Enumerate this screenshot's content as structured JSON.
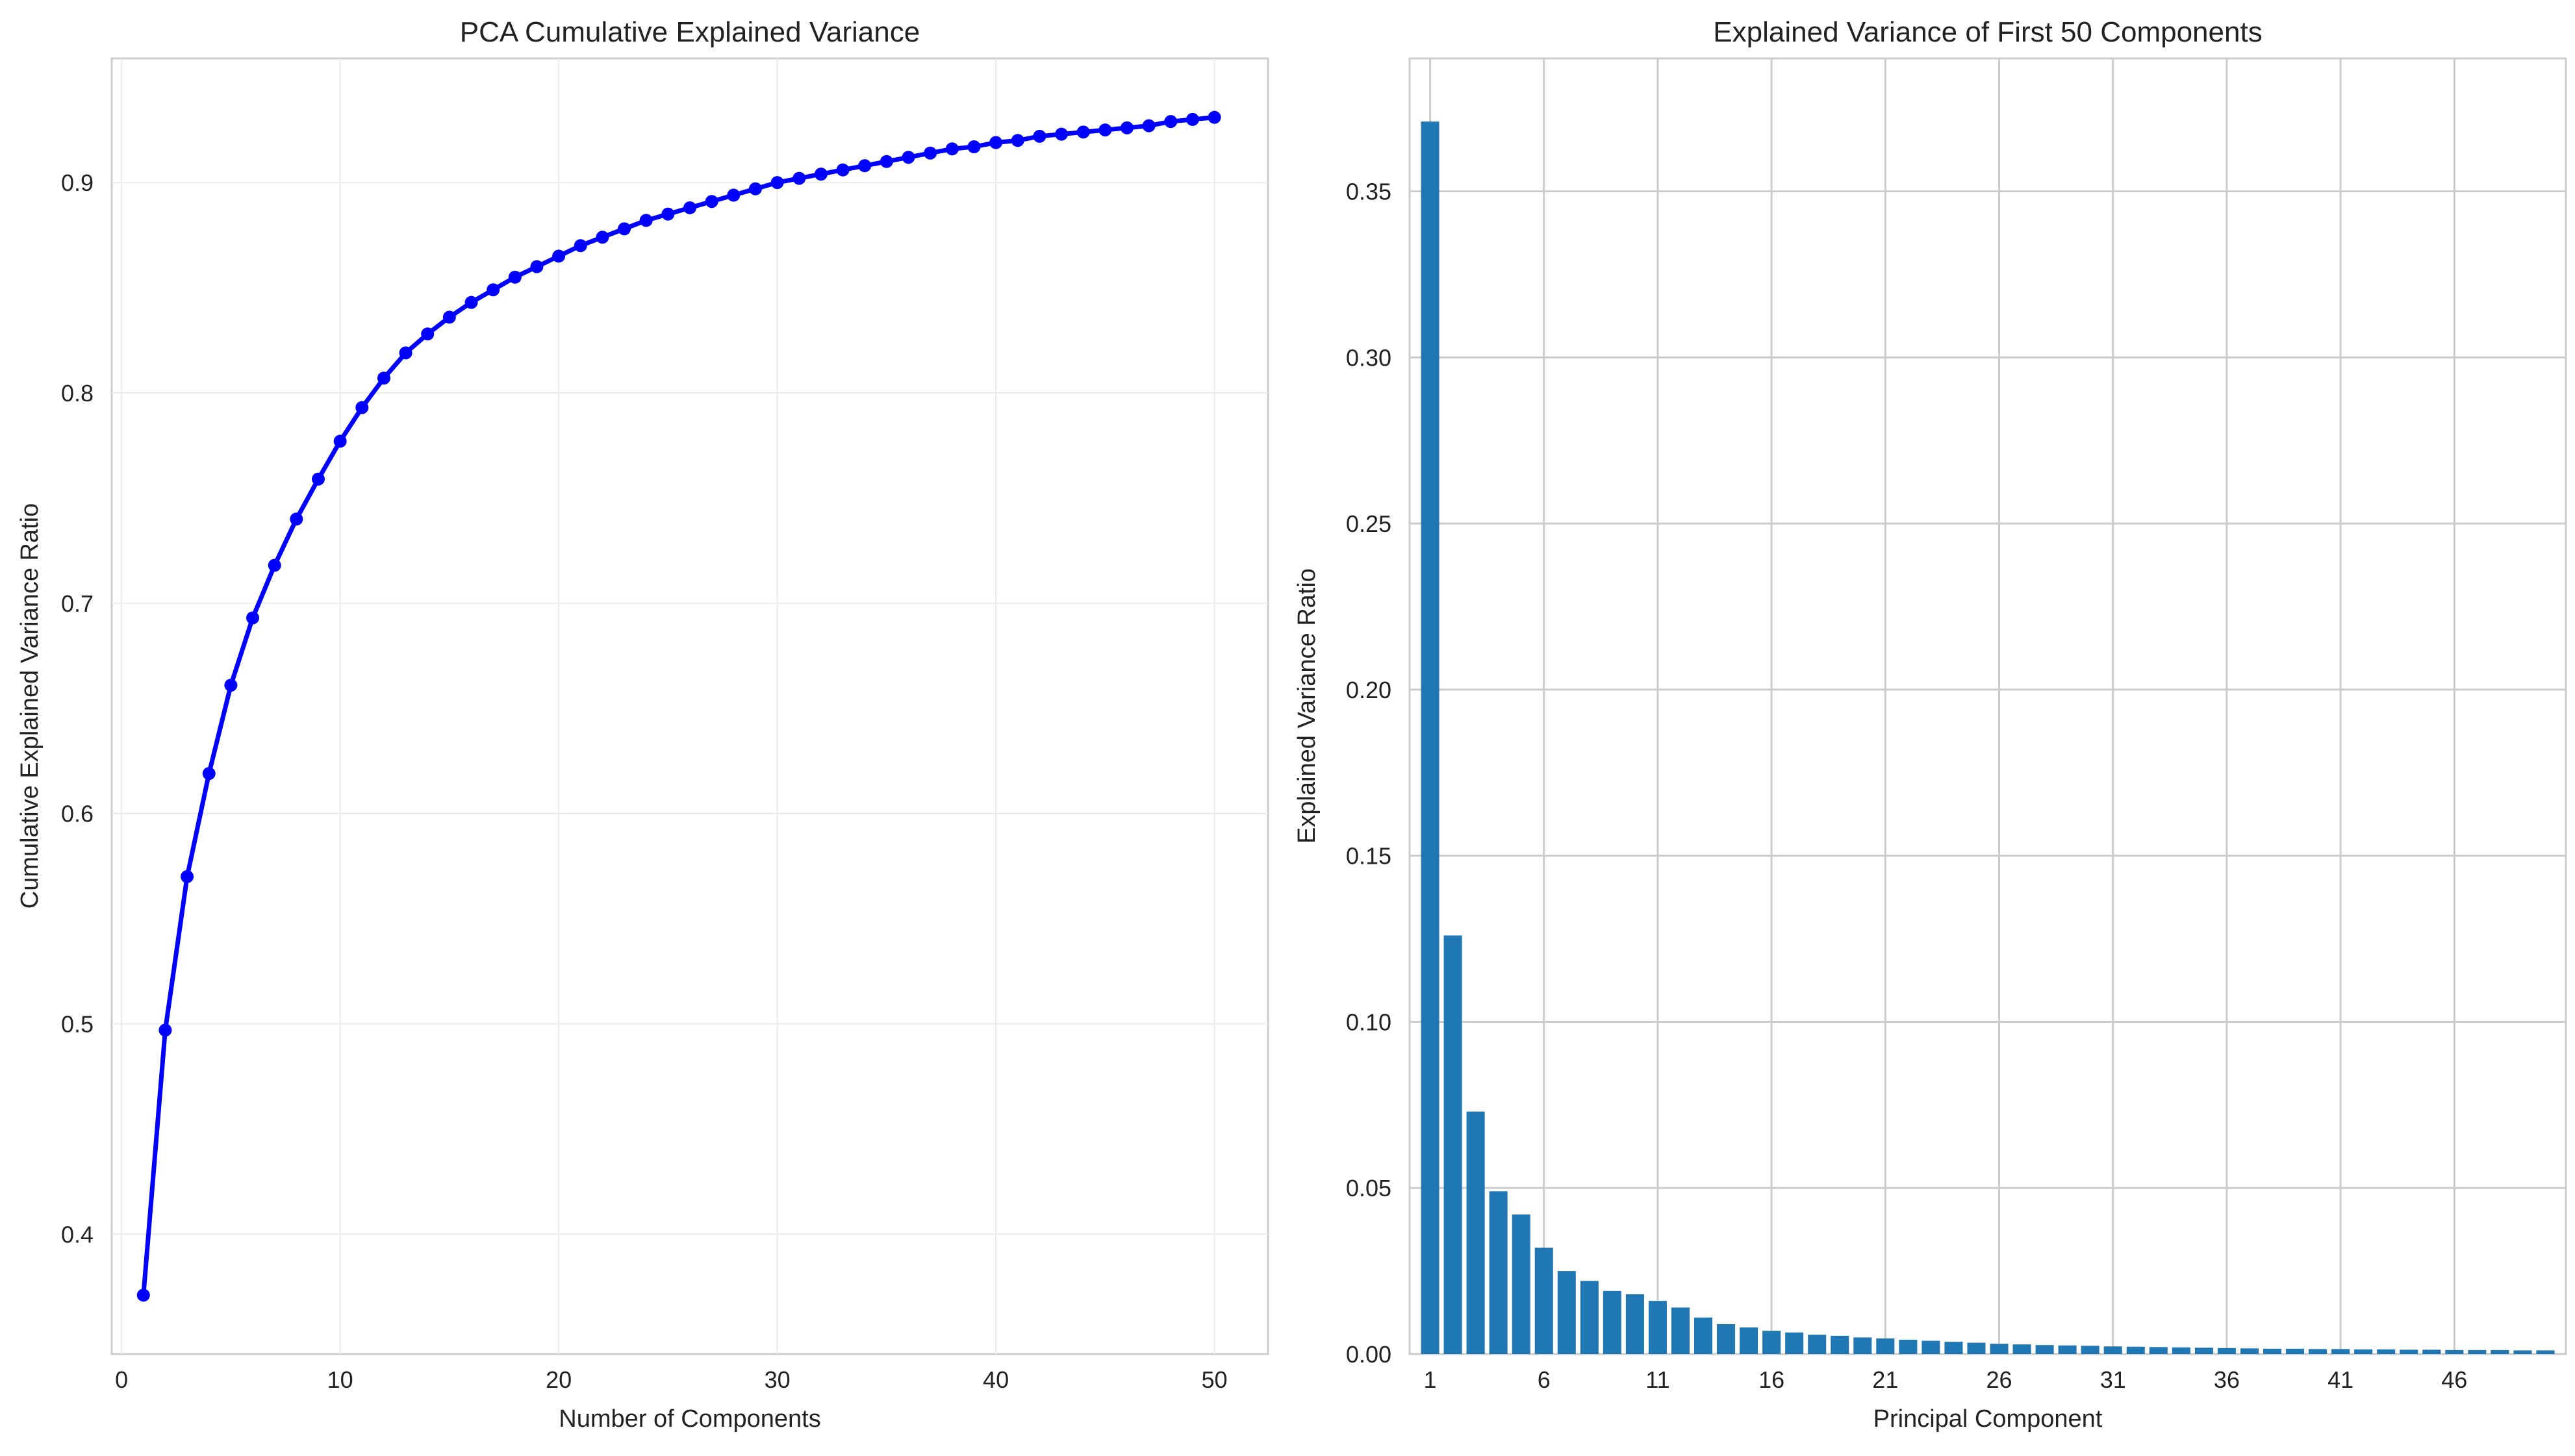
{
  "chart_data": [
    {
      "type": "line",
      "title": "PCA Cumulative Explained Variance",
      "xlabel": "Number of Components",
      "ylabel": "Cumulative Explained Variance Ratio",
      "xlim": [
        -0.45,
        52.45
      ],
      "ylim": [
        0.343,
        0.959
      ],
      "xticks": [
        0,
        10,
        20,
        30,
        40,
        50
      ],
      "yticks": [
        0.4,
        0.5,
        0.6,
        0.7,
        0.8,
        0.9
      ],
      "ytick_labels": [
        "0.4",
        "0.5",
        "0.6",
        "0.7",
        "0.8",
        "0.9"
      ],
      "grid": true,
      "marker": "circle",
      "color": "#0000ff",
      "x": [
        1,
        2,
        3,
        4,
        5,
        6,
        7,
        8,
        9,
        10,
        11,
        12,
        13,
        14,
        15,
        16,
        17,
        18,
        19,
        20,
        21,
        22,
        23,
        24,
        25,
        26,
        27,
        28,
        29,
        30,
        31,
        32,
        33,
        34,
        35,
        36,
        37,
        38,
        39,
        40,
        41,
        42,
        43,
        44,
        45,
        46,
        47,
        48,
        49,
        50
      ],
      "y": [
        0.371,
        0.497,
        0.57,
        0.619,
        0.661,
        0.693,
        0.718,
        0.74,
        0.759,
        0.777,
        0.793,
        0.807,
        0.819,
        0.828,
        0.836,
        0.843,
        0.849,
        0.855,
        0.86,
        0.865,
        0.87,
        0.874,
        0.878,
        0.882,
        0.885,
        0.888,
        0.891,
        0.894,
        0.897,
        0.9,
        0.902,
        0.904,
        0.906,
        0.908,
        0.91,
        0.912,
        0.914,
        0.916,
        0.917,
        0.919,
        0.92,
        0.922,
        0.923,
        0.924,
        0.925,
        0.926,
        0.927,
        0.929,
        0.93,
        0.931
      ]
    },
    {
      "type": "bar",
      "title": "Explained Variance of First 50 Components",
      "xlabel": "Principal Component",
      "ylabel": "Explained Variance Ratio",
      "xlim": [
        -0.4,
        50.4
      ],
      "ylim": [
        0,
        0.39
      ],
      "xticks": [
        1,
        6,
        11,
        16,
        21,
        26,
        31,
        36,
        41,
        46
      ],
      "yticks": [
        0,
        0.05,
        0.1,
        0.15,
        0.2,
        0.25,
        0.3,
        0.35
      ],
      "ytick_labels": [
        "0.00",
        "0.05",
        "0.10",
        "0.15",
        "0.20",
        "0.25",
        "0.30",
        "0.35"
      ],
      "grid": true,
      "color": "#1f77b4",
      "categories": [
        1,
        2,
        3,
        4,
        5,
        6,
        7,
        8,
        9,
        10,
        11,
        12,
        13,
        14,
        15,
        16,
        17,
        18,
        19,
        20,
        21,
        22,
        23,
        24,
        25,
        26,
        27,
        28,
        29,
        30,
        31,
        32,
        33,
        34,
        35,
        36,
        37,
        38,
        39,
        40,
        41,
        42,
        43,
        44,
        45,
        46,
        47,
        48,
        49,
        50
      ],
      "values": [
        0.371,
        0.126,
        0.073,
        0.049,
        0.042,
        0.032,
        0.025,
        0.022,
        0.019,
        0.018,
        0.016,
        0.014,
        0.011,
        0.009,
        0.008,
        0.007,
        0.0065,
        0.0058,
        0.0055,
        0.005,
        0.0047,
        0.0043,
        0.004,
        0.0037,
        0.0034,
        0.0031,
        0.0029,
        0.0027,
        0.0026,
        0.0025,
        0.0023,
        0.0022,
        0.0021,
        0.002,
        0.0019,
        0.0018,
        0.0017,
        0.0016,
        0.0016,
        0.0015,
        0.0015,
        0.0014,
        0.0014,
        0.0013,
        0.0013,
        0.0012,
        0.0012,
        0.0012,
        0.0011,
        0.0011
      ]
    }
  ]
}
